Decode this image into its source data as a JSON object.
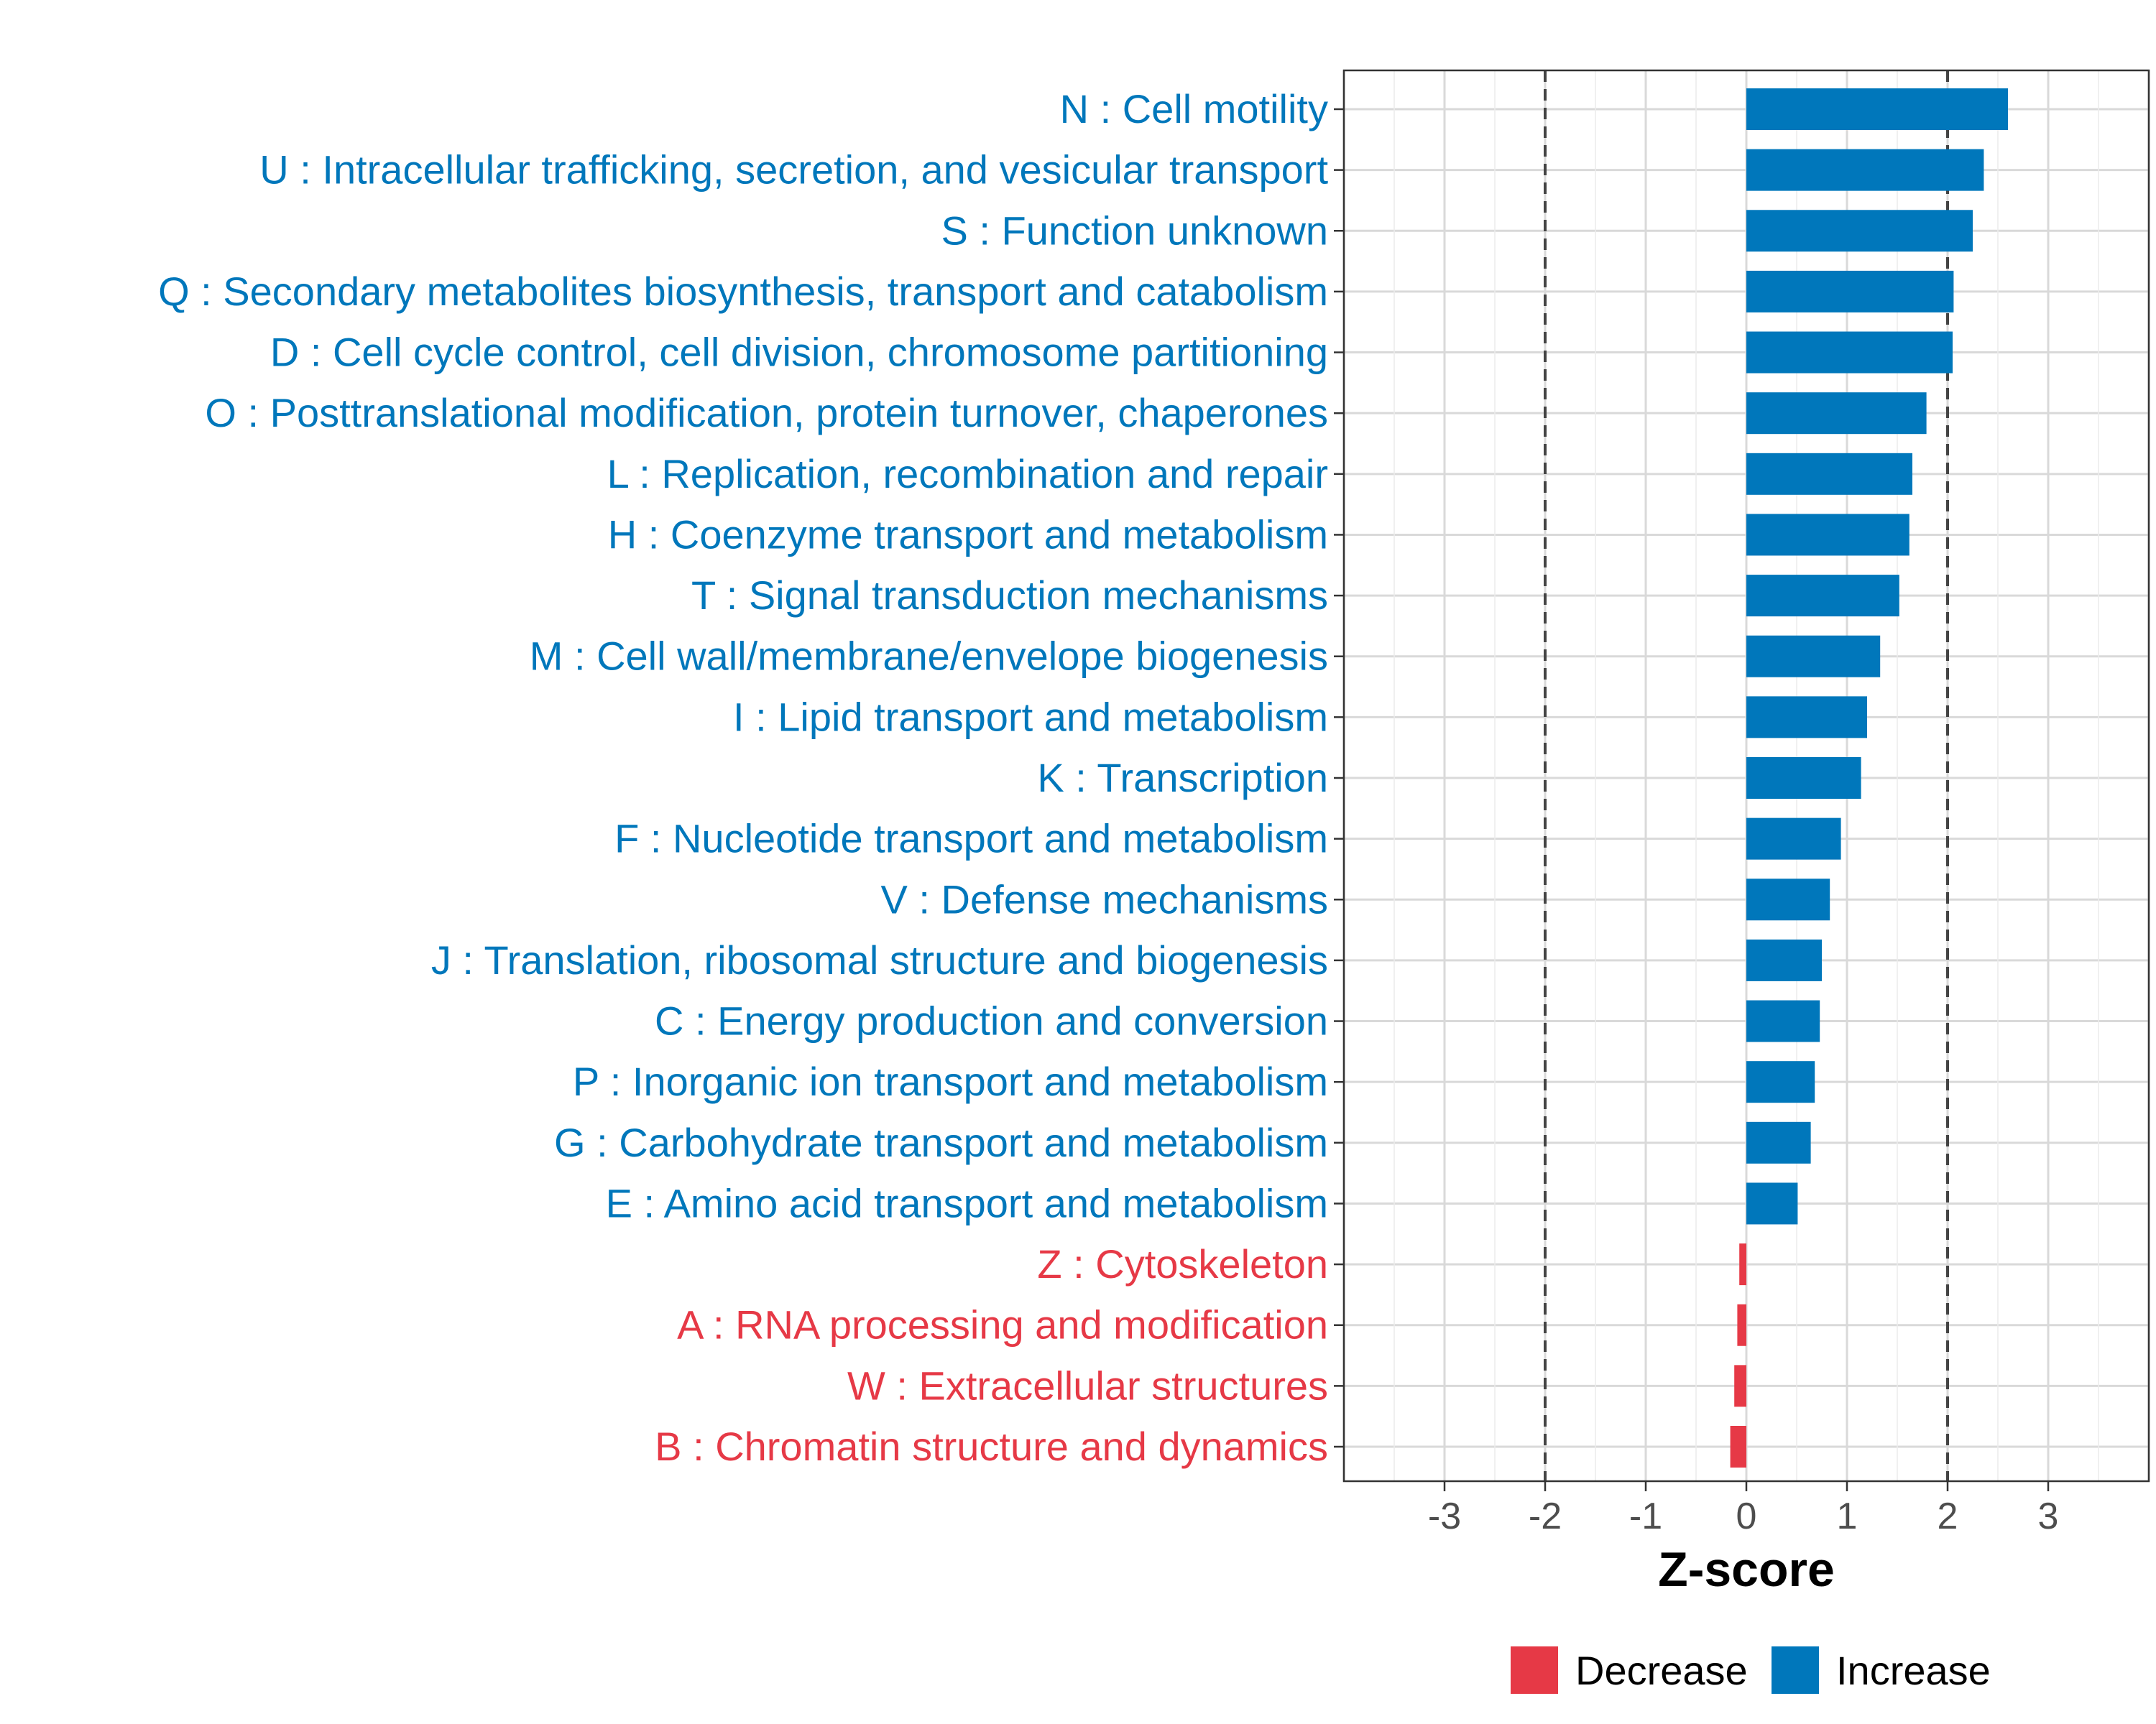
{
  "chart_data": {
    "type": "bar",
    "orientation": "horizontal",
    "xlabel": "Z-score",
    "ylabel": "",
    "xlim": [
      -4,
      4
    ],
    "x_ticks": [
      -3,
      -2,
      -1,
      0,
      1,
      2,
      3
    ],
    "threshold_lines": [
      -2,
      2
    ],
    "grid": true,
    "legend_position": "bottom",
    "colors": {
      "Increase": "#0077bb",
      "Decrease": "#e63946"
    },
    "legend": [
      {
        "name": "Decrease",
        "color": "#e63946"
      },
      {
        "name": "Increase",
        "color": "#0077bb"
      }
    ],
    "categories": [
      "N : Cell motility",
      "U : Intracellular trafficking, secretion, and vesicular transport",
      "S : Function unknown",
      "Q : Secondary metabolites biosynthesis, transport and catabolism",
      "D : Cell cycle control, cell division, chromosome partitioning",
      "O : Posttranslational modification, protein turnover, chaperones",
      "L : Replication, recombination and repair",
      "H : Coenzyme transport and metabolism",
      "T : Signal transduction mechanisms",
      "M : Cell wall/membrane/envelope biogenesis",
      "I : Lipid transport and metabolism",
      "K : Transcription",
      "F : Nucleotide transport and metabolism",
      "V : Defense mechanisms",
      "J : Translation, ribosomal structure and biogenesis",
      "C : Energy production and conversion",
      "P : Inorganic ion transport and metabolism",
      "G : Carbohydrate transport and metabolism",
      "E : Amino acid transport and metabolism",
      "Z : Cytoskeleton",
      "A : RNA processing and modification",
      "W : Extracellular structures",
      "B : Chromatin structure and dynamics"
    ],
    "values": [
      2.6,
      2.36,
      2.25,
      2.06,
      2.05,
      1.79,
      1.65,
      1.62,
      1.52,
      1.33,
      1.2,
      1.14,
      0.94,
      0.83,
      0.75,
      0.73,
      0.68,
      0.64,
      0.51,
      -0.07,
      -0.09,
      -0.12,
      -0.16
    ],
    "direction": [
      "Increase",
      "Increase",
      "Increase",
      "Increase",
      "Increase",
      "Increase",
      "Increase",
      "Increase",
      "Increase",
      "Increase",
      "Increase",
      "Increase",
      "Increase",
      "Increase",
      "Increase",
      "Increase",
      "Increase",
      "Increase",
      "Increase",
      "Decrease",
      "Decrease",
      "Decrease",
      "Decrease"
    ]
  }
}
